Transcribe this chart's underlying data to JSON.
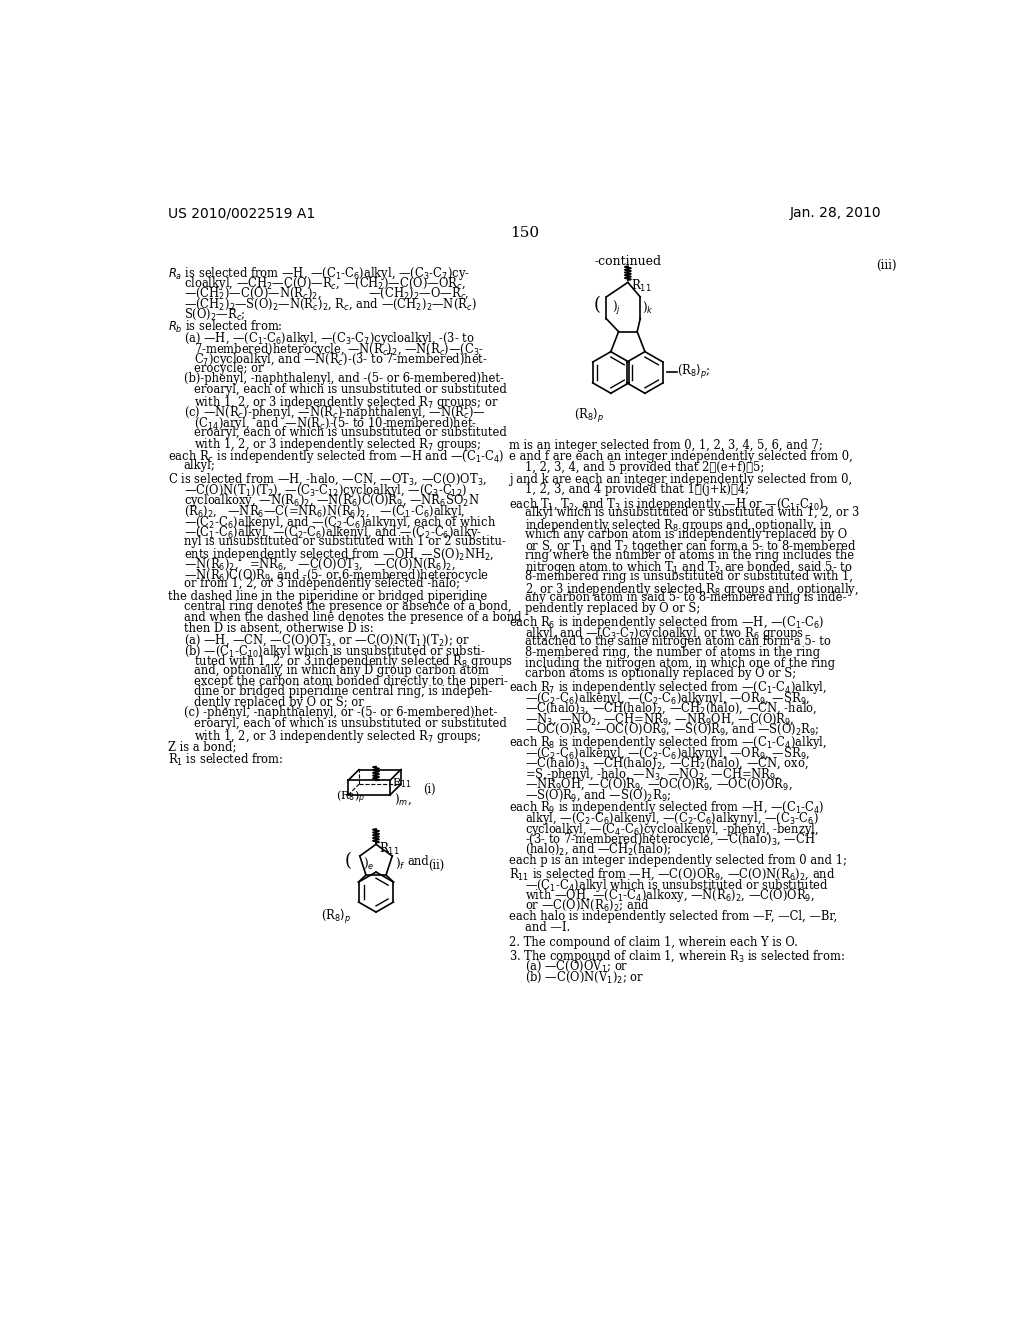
{
  "header_left": "US 2010/0022519 A1",
  "header_right": "Jan. 28, 2010",
  "page_number": "150",
  "background_color": "#ffffff",
  "text_color": "#000000"
}
